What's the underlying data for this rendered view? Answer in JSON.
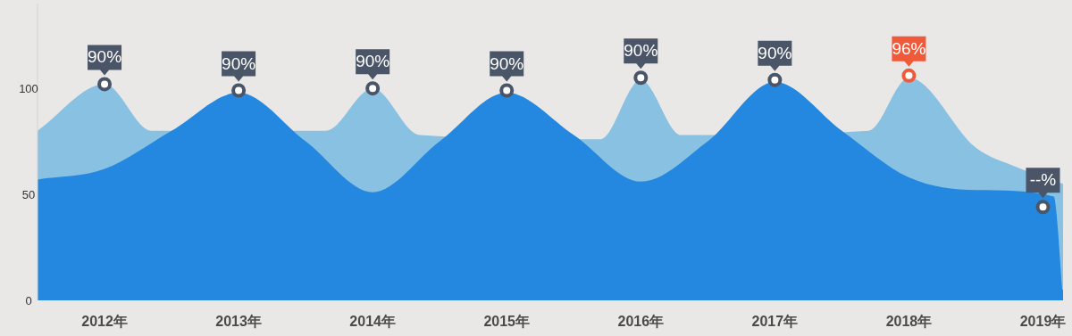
{
  "chart_data": {
    "type": "area",
    "xlim": [
      2011.5,
      2019.15
    ],
    "ylim": [
      0,
      140
    ],
    "yticks": [
      0,
      50,
      100
    ],
    "xticks": [
      {
        "value": 2012,
        "label": "2012年"
      },
      {
        "value": 2013,
        "label": "2013年"
      },
      {
        "value": 2014,
        "label": "2014年"
      },
      {
        "value": 2015,
        "label": "2015年"
      },
      {
        "value": 2016,
        "label": "2016年"
      },
      {
        "value": 2017,
        "label": "2017年"
      },
      {
        "value": 2018,
        "label": "2018年"
      },
      {
        "value": 2019,
        "label": "2019年"
      }
    ],
    "grid": false,
    "series": [
      {
        "color": "#88c1e2",
        "x": [
          2011.5,
          2012,
          2012.35,
          2013.65,
          2014,
          2014.35,
          2015.7,
          2016,
          2016.3,
          2017.7,
          2018,
          2018.5,
          2018.8,
          2019.15
        ],
        "values": [
          80,
          102,
          80,
          80,
          100,
          78,
          76,
          104,
          78,
          80,
          105,
          72,
          63,
          55
        ]
      },
      {
        "color": "#2488e0",
        "x": [
          2011.5,
          2012,
          2012.5,
          2013,
          2013.5,
          2014,
          2014.5,
          2015,
          2015.5,
          2016,
          2016.5,
          2017,
          2017.5,
          2018,
          2018.5,
          2019.08,
          2019.15
        ],
        "values": [
          57,
          62,
          80,
          98,
          75,
          51,
          75,
          98,
          78,
          56,
          75,
          103,
          80,
          58,
          52,
          49,
          0
        ]
      },
      {
        "type": "scatter",
        "marker": "circle",
        "colors": [
          "#4a5568",
          "#4a5568",
          "#4a5568",
          "#4a5568",
          "#4a5568",
          "#4a5568",
          "#f05a3a",
          "#4a5568"
        ],
        "x": [
          2012,
          2013,
          2014,
          2015,
          2016,
          2017,
          2018,
          2019
        ],
        "values": [
          102,
          99,
          100,
          99,
          105,
          104,
          106,
          44
        ]
      }
    ],
    "annotations": [
      {
        "text": "90%",
        "x": 2012,
        "y": 102
      },
      {
        "text": "90%",
        "x": 2013,
        "y": 99
      },
      {
        "text": "90%",
        "x": 2014,
        "y": 100
      },
      {
        "text": "90%",
        "x": 2015,
        "y": 99
      },
      {
        "text": "90%",
        "x": 2016,
        "y": 105
      },
      {
        "text": "90%",
        "x": 2017,
        "y": 104
      },
      {
        "text": "96%",
        "x": 2018,
        "y": 106
      },
      {
        "text": "--%",
        "x": 2019,
        "y": 44
      }
    ]
  }
}
